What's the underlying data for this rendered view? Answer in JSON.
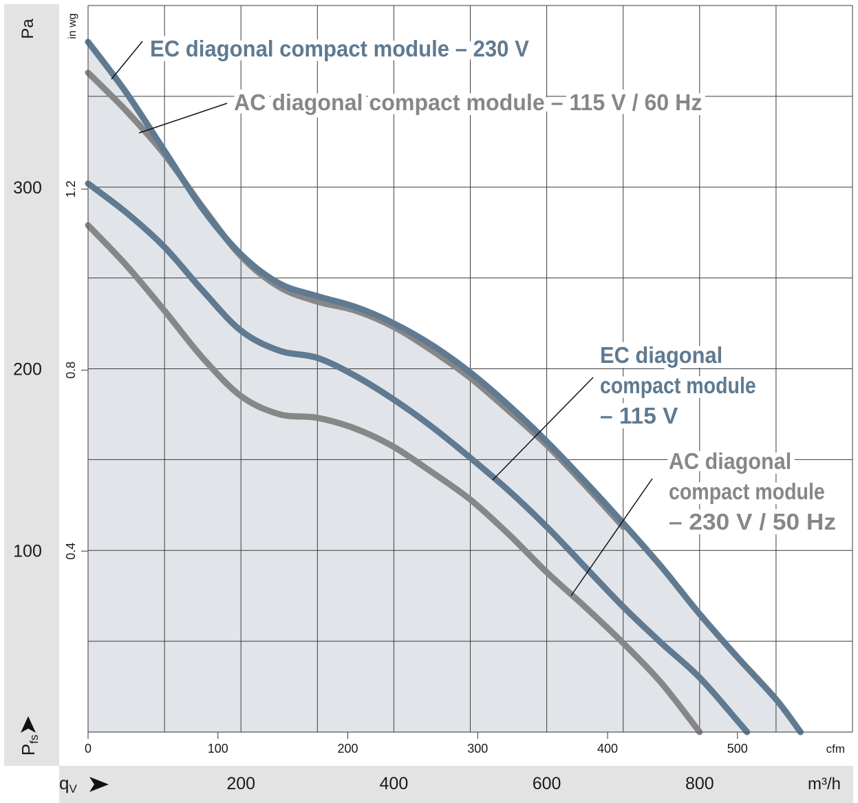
{
  "chart_data": {
    "type": "line",
    "title": "",
    "xlabel": "qV",
    "xlabel_symbol": "q",
    "xlabel_subscript": "V",
    "x_unit_primary": "m³/h",
    "x_unit_secondary": "cfm",
    "ylabel": "Pfs",
    "ylabel_symbol": "P",
    "ylabel_subscript": "fs",
    "y_unit_primary": "Pa",
    "y_unit_secondary": "in wg",
    "xlim": [
      0,
      1000
    ],
    "ylim": [
      0,
      400
    ],
    "grid": true,
    "x_ticks_primary": [
      {
        "value": 200,
        "label": "200"
      },
      {
        "value": 400,
        "label": "400"
      },
      {
        "value": 600,
        "label": "600"
      },
      {
        "value": 800,
        "label": "800"
      }
    ],
    "x_gridlines": [
      0,
      100,
      200,
      300,
      400,
      500,
      600,
      700,
      800,
      900,
      1000
    ],
    "x_ticks_secondary": [
      {
        "value": 0,
        "label": "0"
      },
      {
        "value": 100,
        "label": "100"
      },
      {
        "value": 200,
        "label": "200"
      },
      {
        "value": 300,
        "label": "300"
      },
      {
        "value": 400,
        "label": "400"
      },
      {
        "value": 500,
        "label": "500"
      }
    ],
    "cfm_to_m3h": 1.699,
    "y_ticks_primary": [
      {
        "value": 100,
        "label": "100"
      },
      {
        "value": 200,
        "label": "200"
      },
      {
        "value": 300,
        "label": "300"
      }
    ],
    "y_gridlines": [
      0,
      50,
      100,
      150,
      200,
      250,
      300,
      350,
      400
    ],
    "y_ticks_secondary": [
      {
        "value": 0.4,
        "label": "0.4"
      },
      {
        "value": 0.8,
        "label": "0.8"
      },
      {
        "value": 1.2,
        "label": "1.2"
      }
    ],
    "inwg_to_pa": 249.09,
    "series": [
      {
        "name": "EC diagonal compact module – 230 V",
        "color": "#5f7a91",
        "x": [
          0,
          50,
          100,
          150,
          200,
          250,
          300,
          350,
          400,
          450,
          500,
          550,
          600,
          650,
          700,
          750,
          800,
          850,
          900,
          932
        ],
        "y": [
          380,
          352,
          320,
          288,
          263,
          247,
          240,
          234,
          225,
          213,
          198,
          180,
          160,
          138,
          115,
          91,
          65,
          41,
          18,
          0
        ]
      },
      {
        "name": "AC diagonal compact module – 115 V / 60 Hz",
        "color": "#878787",
        "x": [
          0,
          50,
          100,
          150,
          200,
          250,
          300,
          350,
          400,
          450,
          500,
          550,
          600,
          650,
          700
        ],
        "y": [
          363,
          342,
          318,
          289,
          262,
          245,
          237,
          232,
          223,
          210,
          195,
          177,
          158,
          136,
          113
        ]
      },
      {
        "name": "EC diagonal compact module – 115 V",
        "color": "#5f7a91",
        "x": [
          0,
          50,
          100,
          150,
          200,
          250,
          300,
          350,
          400,
          450,
          500,
          550,
          600,
          650,
          700,
          750,
          800,
          850,
          862
        ],
        "y": [
          302,
          286,
          267,
          243,
          221,
          210,
          206,
          196,
          183,
          168,
          151,
          133,
          113,
          91,
          69,
          49,
          30,
          6,
          0
        ]
      },
      {
        "name": "AC diagonal compact module – 230 V / 50 Hz",
        "color": "#878787",
        "x": [
          0,
          50,
          100,
          150,
          200,
          250,
          300,
          350,
          400,
          450,
          500,
          550,
          600,
          650,
          700,
          750,
          800
        ],
        "y": [
          279,
          257,
          232,
          206,
          185,
          175,
          173,
          167,
          157,
          143,
          128,
          109,
          88,
          69,
          49,
          27,
          0
        ]
      }
    ],
    "annotations": [
      {
        "series": 0,
        "lines": [
          "EC diagonal compact module – 230 V"
        ],
        "style": "ec"
      },
      {
        "series": 1,
        "lines": [
          "AC diagonal compact module – 115 V / 60 Hz"
        ],
        "style": "ac"
      },
      {
        "series": 2,
        "lines": [
          "EC diagonal",
          "compact module",
          "– 115 V"
        ],
        "style": "ec"
      },
      {
        "series": 3,
        "lines": [
          "AC diagonal",
          "compact module",
          "– 230 V / 50 Hz"
        ],
        "style": "ac"
      }
    ],
    "colors": {
      "ec": "#5f7a91",
      "ac": "#878787",
      "fill": "#e1e5ea",
      "axis_band": "#e3e3e3",
      "grid": "#3a3a3a"
    }
  }
}
